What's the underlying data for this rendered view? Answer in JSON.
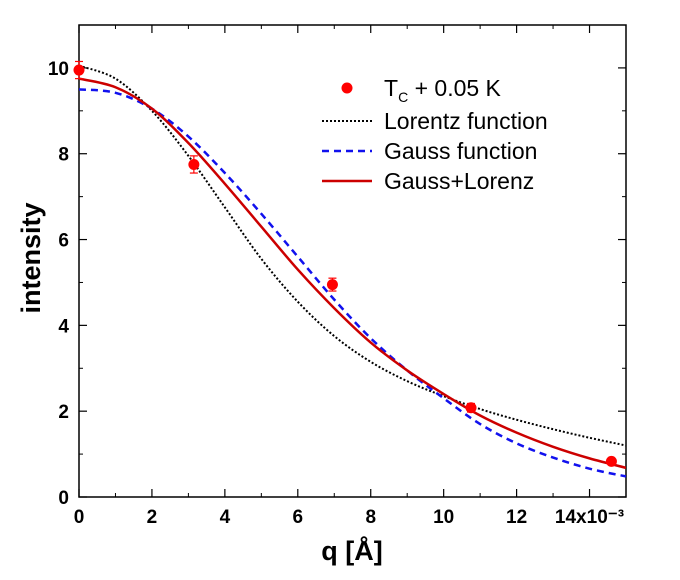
{
  "chart_data": {
    "type": "line",
    "title": "",
    "xlabel": "q [Å]",
    "ylabel": "intensity",
    "x_scale_note": "x10^-3",
    "xlim": [
      0,
      15
    ],
    "ylim": [
      0,
      11
    ],
    "x_ticks": [
      0,
      2,
      4,
      6,
      8,
      10,
      12,
      14
    ],
    "x_tick_labels": [
      "0",
      "2",
      "4",
      "6",
      "8",
      "10",
      "12",
      "14x10⁻³"
    ],
    "y_ticks": [
      0,
      2,
      4,
      6,
      8,
      10
    ],
    "y_tick_labels": [
      "0",
      "2",
      "4",
      "6",
      "8",
      "10"
    ],
    "grid": false,
    "legend_position": "top-right",
    "series": [
      {
        "name": "T_C + 0.05 K",
        "label_main": "T",
        "label_sub": "C",
        "label_rest": " + 0.05 K",
        "kind": "points",
        "color": "#ff0000",
        "x": [
          0.0,
          3.15,
          6.95,
          10.75,
          14.6
        ],
        "y": [
          9.95,
          7.75,
          4.95,
          2.08,
          0.83
        ],
        "yerr": [
          0.2,
          0.2,
          0.15,
          0.1,
          0.05
        ]
      },
      {
        "name": "Lorentz function",
        "kind": "line",
        "style": "dotted",
        "color": "#000000",
        "x": [
          0,
          1,
          2,
          3,
          4,
          5,
          6,
          7,
          8,
          9,
          10,
          11,
          12,
          13,
          14,
          15
        ],
        "y": [
          10.05,
          9.75,
          9.0,
          7.95,
          6.75,
          5.55,
          4.55,
          3.75,
          3.15,
          2.7,
          2.35,
          2.05,
          1.8,
          1.58,
          1.38,
          1.2
        ]
      },
      {
        "name": "Gauss function",
        "kind": "line",
        "style": "dashed",
        "color": "#1111ee",
        "x": [
          0,
          1,
          2,
          3,
          4,
          5,
          6,
          7,
          8,
          9,
          10,
          11,
          12,
          13,
          14,
          15
        ],
        "y": [
          9.5,
          9.42,
          9.05,
          8.4,
          7.55,
          6.6,
          5.6,
          4.6,
          3.7,
          2.95,
          2.3,
          1.7,
          1.25,
          0.92,
          0.66,
          0.48
        ]
      },
      {
        "name": "Gauss+Lorenz",
        "kind": "line",
        "style": "solid",
        "color": "#cc0000",
        "x": [
          0,
          1,
          2,
          3,
          4,
          5,
          6,
          7,
          8,
          9,
          10,
          11,
          12,
          13,
          14,
          15
        ],
        "y": [
          9.75,
          9.55,
          9.05,
          8.25,
          7.3,
          6.3,
          5.3,
          4.4,
          3.6,
          2.95,
          2.4,
          1.9,
          1.5,
          1.17,
          0.9,
          0.68
        ]
      }
    ]
  }
}
